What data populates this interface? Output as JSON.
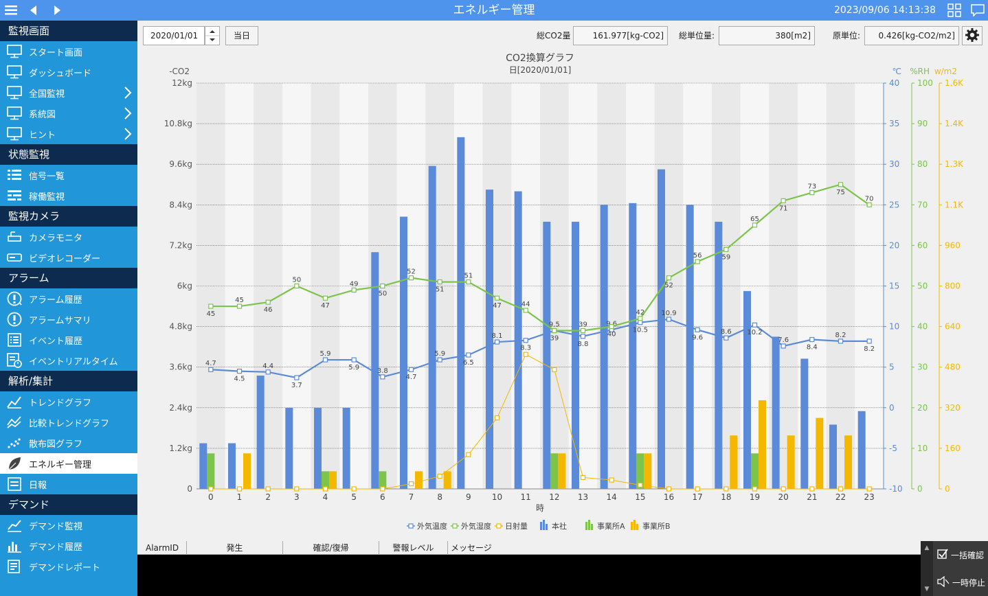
{
  "topbar": {
    "title": "エネルギー管理",
    "datetime": "2023/09/06 14:13:38"
  },
  "sidebar": {
    "sections": [
      {
        "title": "監視画面",
        "items": [
          {
            "label": "スタート画面",
            "icon": "monitor-icon",
            "chevron": false
          },
          {
            "label": "ダッシュボード",
            "icon": "monitor-icon",
            "chevron": false
          },
          {
            "label": "全国監視",
            "icon": "monitor-icon",
            "chevron": true
          },
          {
            "label": "系統図",
            "icon": "monitor-icon",
            "chevron": true
          },
          {
            "label": "ヒント",
            "icon": "monitor-icon",
            "chevron": true
          }
        ]
      },
      {
        "title": "状態監視",
        "items": [
          {
            "label": "信号一覧",
            "icon": "list-icon",
            "chevron": false
          },
          {
            "label": "稼働監視",
            "icon": "operation-icon",
            "chevron": false
          }
        ]
      },
      {
        "title": "監視カメラ",
        "items": [
          {
            "label": "カメラモニタ",
            "icon": "camera-icon",
            "chevron": false
          },
          {
            "label": "ビデオレコーダー",
            "icon": "recorder-icon",
            "chevron": false
          }
        ]
      },
      {
        "title": "アラーム",
        "items": [
          {
            "label": "アラーム履歴",
            "icon": "alarm-history-icon",
            "chevron": false
          },
          {
            "label": "アラームサマリ",
            "icon": "alarm-summary-icon",
            "chevron": false
          },
          {
            "label": "イベント履歴",
            "icon": "event-history-icon",
            "chevron": false
          },
          {
            "label": "イベントリアルタイム",
            "icon": "event-realtime-icon",
            "chevron": false
          }
        ]
      },
      {
        "title": "解析/集計",
        "items": [
          {
            "label": "トレンドグラフ",
            "icon": "trend-icon",
            "chevron": false
          },
          {
            "label": "比較トレンドグラフ",
            "icon": "compare-trend-icon",
            "chevron": false
          },
          {
            "label": "散布図グラフ",
            "icon": "scatter-icon",
            "chevron": false
          },
          {
            "label": "エネルギー管理",
            "icon": "leaf-icon",
            "chevron": false,
            "active": true
          },
          {
            "label": "日報",
            "icon": "daily-report-icon",
            "chevron": false
          }
        ]
      },
      {
        "title": "デマンド",
        "items": [
          {
            "label": "デマンド監視",
            "icon": "demand-monitor-icon",
            "chevron": false
          },
          {
            "label": "デマンド履歴",
            "icon": "demand-history-icon",
            "chevron": false
          },
          {
            "label": "デマンドレポート",
            "icon": "demand-report-icon",
            "chevron": false
          }
        ]
      }
    ]
  },
  "toolbar": {
    "date": "2020/01/01",
    "today_label": "当日",
    "total_co2_label": "総CO2量",
    "total_co2_value": "161.977[kg-CO2]",
    "total_unit_label": "総単位量:",
    "total_unit_value": "380[m2]",
    "intensity_label": "原単位:",
    "intensity_value": "0.426[kg-CO2/m2]"
  },
  "chart_data": {
    "type": "bar",
    "title": "CO2換算グラフ",
    "subtitle": "日[2020/01/01]",
    "xlabel": "時",
    "categories": [
      "0",
      "1",
      "2",
      "3",
      "4",
      "5",
      "6",
      "7",
      "8",
      "9",
      "10",
      "11",
      "12",
      "13",
      "14",
      "15",
      "16",
      "17",
      "18",
      "19",
      "20",
      "21",
      "22",
      "23"
    ],
    "axes": {
      "co2": {
        "label": "-CO2",
        "ylim": [
          0,
          12000
        ],
        "ticks": [
          "0",
          "1.2kg",
          "2.4kg",
          "3.6kg",
          "4.8kg",
          "6kg",
          "7.2kg",
          "8.4kg",
          "9.6kg",
          "10.8kg",
          "12kg"
        ],
        "color": "#555555"
      },
      "temp": {
        "label": "℃",
        "ylim": [
          -10,
          40
        ],
        "ticks": [
          "-10",
          "-5",
          "0",
          "5",
          "10",
          "15",
          "20",
          "25",
          "30",
          "35",
          "40"
        ],
        "color": "#5b8ad8"
      },
      "humidity": {
        "label": "%RH",
        "ylim": [
          0,
          100
        ],
        "ticks": [
          "0",
          "10",
          "20",
          "30",
          "40",
          "50",
          "60",
          "70",
          "80",
          "90",
          "100"
        ],
        "color": "#7cc44a"
      },
      "solar": {
        "label": "w/m2",
        "ylim": [
          0,
          1600
        ],
        "ticks": [
          "0",
          "160",
          "320",
          "480",
          "640",
          "800",
          "960",
          "1.1K",
          "1.3K",
          "1.4K",
          "1.6K"
        ],
        "color": "#f5b800"
      }
    },
    "bar_series": [
      {
        "name": "本社",
        "color": "#5b8ad8",
        "values": [
          1350,
          1350,
          3350,
          2400,
          2400,
          2400,
          7000,
          8050,
          9550,
          10400,
          8850,
          8800,
          7900,
          7900,
          8400,
          8450,
          9450,
          8400,
          7900,
          5850,
          4500,
          3850,
          1900,
          2300
        ]
      },
      {
        "name": "事業所A",
        "color": "#7cc44a",
        "values": [
          1050,
          0,
          0,
          0,
          520,
          0,
          520,
          0,
          0,
          0,
          0,
          0,
          1050,
          0,
          0,
          1050,
          0,
          0,
          0,
          1050,
          0,
          0,
          0,
          0
        ]
      },
      {
        "name": "事業所B",
        "color": "#f5b800",
        "values": [
          0,
          1050,
          0,
          0,
          520,
          0,
          0,
          520,
          520,
          0,
          0,
          0,
          1050,
          0,
          0,
          1050,
          0,
          0,
          1580,
          2620,
          1580,
          2100,
          1580,
          0
        ]
      }
    ],
    "line_series": [
      {
        "name": "外気温度",
        "axis": "temp",
        "color": "#5b8ad8",
        "values": [
          4.7,
          4.5,
          4.4,
          3.7,
          5.9,
          5.9,
          3.8,
          4.7,
          5.9,
          6.5,
          8.1,
          8.3,
          9.5,
          8.8,
          9.6,
          10.5,
          10.9,
          9.6,
          8.6,
          10.2,
          7.6,
          8.4,
          8.2,
          8.2
        ],
        "labels": [
          "4.7",
          "4.5",
          "4.4",
          "3.7",
          "5.9",
          "5.9",
          "3.8",
          "4.7",
          "5.9",
          "6.5",
          "8.1",
          "8.3",
          "9.5",
          "8.8",
          "9.6",
          "10.5",
          "10.9",
          "9.6",
          "8.6",
          "10.2",
          "7.6",
          "8.4",
          "8.2",
          "8.2"
        ]
      },
      {
        "name": "外気湿度",
        "axis": "humidity",
        "color": "#7cc44a",
        "values": [
          45,
          45,
          46,
          50,
          47,
          49,
          50,
          52,
          51,
          51,
          47,
          44,
          39,
          39,
          40,
          42,
          52,
          56,
          59,
          65,
          71,
          73,
          75,
          70
        ],
        "labels": [
          "45",
          "45",
          "46",
          "50",
          "47",
          "49",
          "50",
          "52",
          "51",
          "51",
          "47",
          "44",
          "39",
          "39",
          "40",
          "42",
          "52",
          "56",
          "59",
          "65",
          "71",
          "73",
          "75",
          "70"
        ]
      },
      {
        "name": "日射量",
        "axis": "solar",
        "color": "#f5b800",
        "values": [
          0,
          0,
          0,
          0,
          0,
          0,
          0,
          20,
          50,
          135,
          280,
          530,
          470,
          45,
          35,
          15,
          0,
          0,
          0,
          0,
          0,
          0,
          0,
          0
        ]
      }
    ],
    "legend": [
      "外気温度",
      "外気湿度",
      "日射量",
      "本社",
      "事業所A",
      "事業所B"
    ],
    "legend_position": "bottom-center",
    "grid": true
  },
  "alarm_panel": {
    "columns": [
      "AlarmID",
      "発生",
      "確認/復帰",
      "警報レベル",
      "メッセージ"
    ],
    "confirm_all_label": "一括確認",
    "pause_label": "一時停止"
  }
}
